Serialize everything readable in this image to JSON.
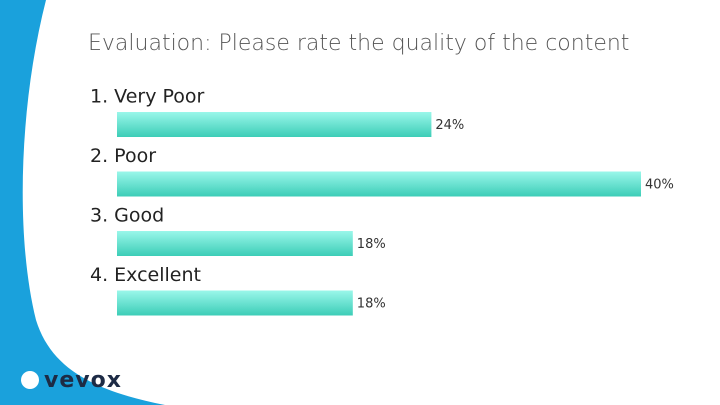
{
  "chart_data": {
    "type": "bar",
    "orientation": "horizontal",
    "title": "Evaluation: Please rate the quality of the content",
    "categories": [
      "1. Very Poor",
      "2. Poor",
      "3. Good",
      "4. Excellent"
    ],
    "values": [
      24,
      40,
      18,
      18
    ],
    "value_labels": [
      "24%",
      "40%",
      "18%",
      "18%"
    ],
    "color": "#4fd8c4"
  },
  "brand": "vevox"
}
